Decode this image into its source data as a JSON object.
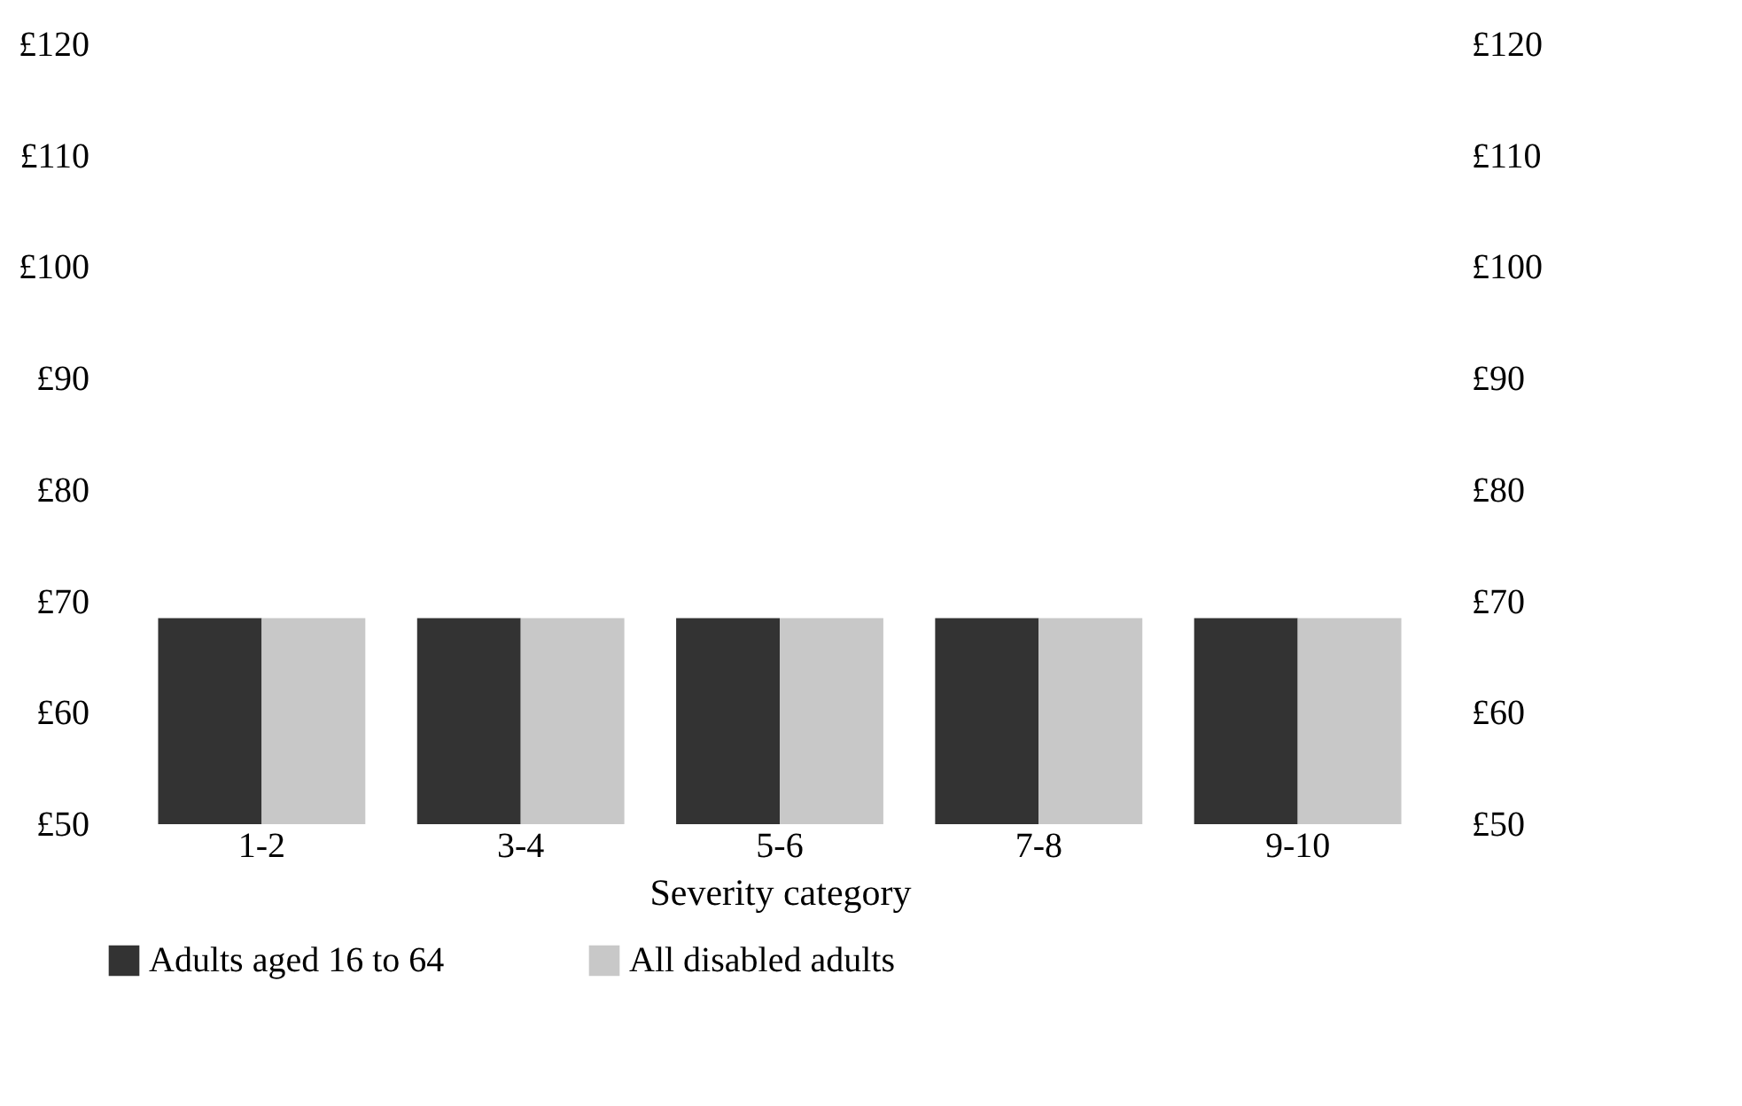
{
  "chart_data": {
    "type": "bar",
    "xlabel": "Severity category",
    "categories": [
      "1-2",
      "3-4",
      "5-6",
      "7-8",
      "9-10"
    ],
    "series": [
      {
        "name": "Adults aged 16 to 64",
        "color": "#333333",
        "values": [
          68.5,
          68.5,
          68.5,
          68.5,
          68.5
        ]
      },
      {
        "name": "All disabled adults",
        "color": "#c8c8c8",
        "values": [
          68.5,
          68.5,
          68.5,
          68.5,
          68.5
        ]
      }
    ],
    "ylim": [
      50,
      120
    ],
    "yticks": [
      {
        "value": 50,
        "label": "£50"
      },
      {
        "value": 60,
        "label": "£60"
      },
      {
        "value": 70,
        "label": "£70"
      },
      {
        "value": 80,
        "label": "£80"
      },
      {
        "value": 90,
        "label": "£90"
      },
      {
        "value": 100,
        "label": "£100"
      },
      {
        "value": 110,
        "label": "£110"
      },
      {
        "value": 120,
        "label": "£120"
      }
    ],
    "y2lim": [
      50,
      120
    ],
    "y2ticks": [
      {
        "value": 50,
        "label": "£50"
      },
      {
        "value": 60,
        "label": "£60"
      },
      {
        "value": 70,
        "label": "£70"
      },
      {
        "value": 80,
        "label": "£80"
      },
      {
        "value": 90,
        "label": "£90"
      },
      {
        "value": 100,
        "label": "£100"
      },
      {
        "value": 110,
        "label": "£110"
      },
      {
        "value": 120,
        "label": "£120"
      }
    ],
    "grid": false,
    "legend": "bottom"
  }
}
